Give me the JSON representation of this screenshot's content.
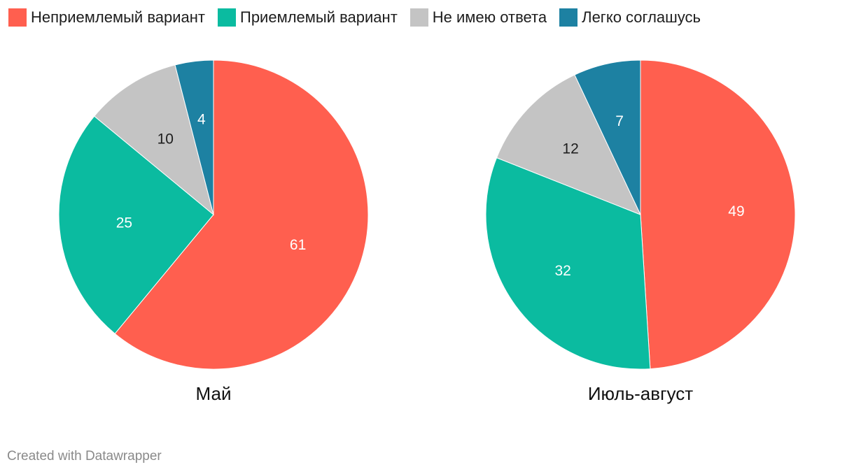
{
  "legend": [
    {
      "label": "Неприемлемый вариант",
      "color": "#ff5f4f"
    },
    {
      "label": "Приемлемый вариант",
      "color": "#0bbba0"
    },
    {
      "label": "Не имею ответа",
      "color": "#c4c4c4"
    },
    {
      "label": "Легко соглашусь",
      "color": "#1d81a2"
    }
  ],
  "chart_data": [
    {
      "type": "pie",
      "title": "Май",
      "categories": [
        "Неприемлемый вариант",
        "Приемлемый вариант",
        "Не имею ответа",
        "Легко соглашусь"
      ],
      "values": [
        61,
        25,
        10,
        4
      ],
      "label_colors": [
        "#ffffff",
        "#ffffff",
        "#1d1d1d",
        "#ffffff"
      ]
    },
    {
      "type": "pie",
      "title": "Июль-август",
      "categories": [
        "Неприемлемый вариант",
        "Приемлемый вариант",
        "Не имею ответа",
        "Легко соглашусь"
      ],
      "values": [
        49,
        32,
        12,
        7
      ],
      "label_colors": [
        "#ffffff",
        "#ffffff",
        "#1d1d1d",
        "#ffffff"
      ]
    }
  ],
  "footer": "Created with Datawrapper"
}
